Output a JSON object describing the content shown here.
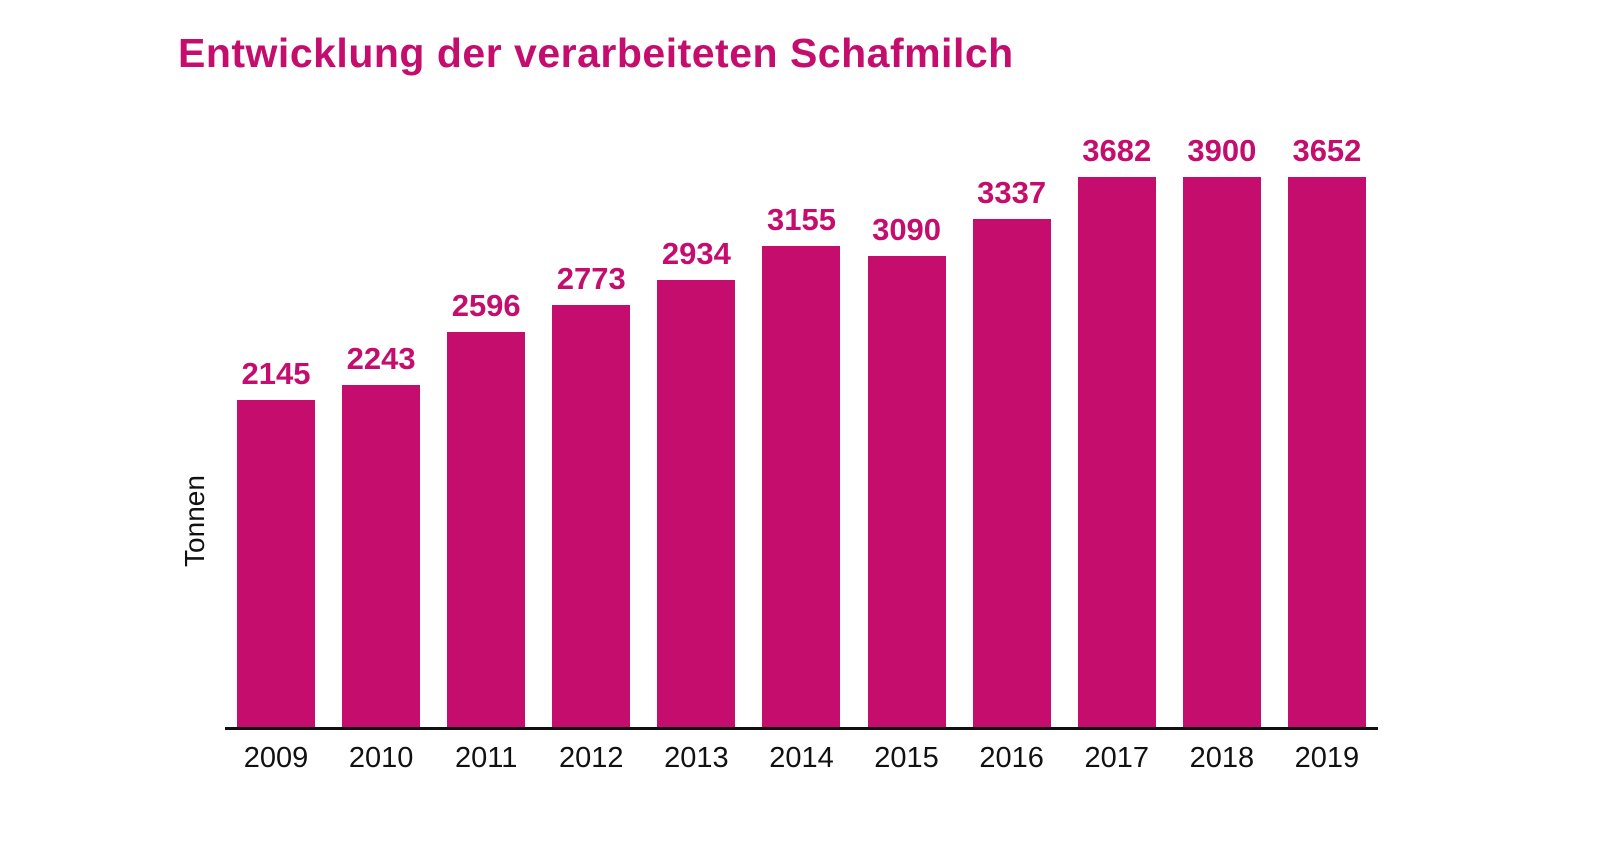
{
  "accent_color": "#c40d6d",
  "chart_data": {
    "type": "bar",
    "title": "Entwicklung der verarbeiteten Schafmilch",
    "xlabel": "",
    "ylabel": "Tonnen",
    "categories": [
      "2009",
      "2010",
      "2011",
      "2012",
      "2013",
      "2014",
      "2015",
      "2016",
      "2017",
      "2018",
      "2019"
    ],
    "values": [
      2145,
      2243,
      2596,
      2773,
      2934,
      3155,
      3090,
      3337,
      3682,
      3900,
      3652
    ],
    "ylim": [
      0,
      3900
    ],
    "grid": false,
    "legend": "none",
    "bar_color": "#c40d6d",
    "value_labels_shown": true
  }
}
